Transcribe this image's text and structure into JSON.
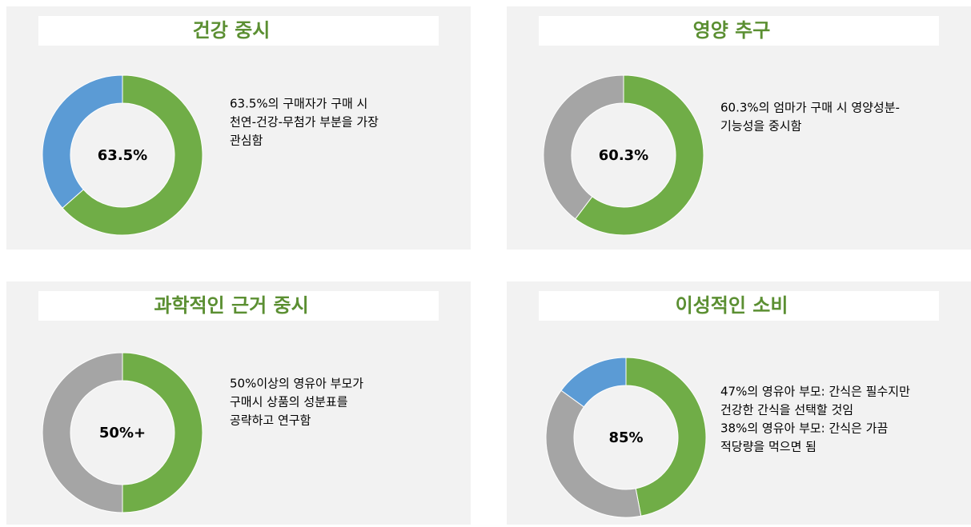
{
  "chart_data": [
    {
      "type": "donut",
      "title": "건강 중시",
      "center_label": "63.5%",
      "annotation": [
        "63.5%의 구매자가 구매 시",
        "천연-건강-무첨가 부분을 가장",
        "관심함"
      ],
      "values": [
        63.5,
        36.5
      ],
      "colors": [
        "#70ad47",
        "#5b9bd5"
      ]
    },
    {
      "type": "donut",
      "title": "영양 추구",
      "center_label": "60.3%",
      "annotation": [
        "60.3%의 엄마가 구매 시 영양성분-",
        "기능성을 중시함"
      ],
      "values": [
        60.3,
        39.7
      ],
      "colors": [
        "#70ad47",
        "#a5a5a5"
      ]
    },
    {
      "type": "donut",
      "title": "과학적인 근거 중시",
      "center_label": "50%+",
      "annotation": [
        "50%이상의 영유아 부모가",
        "구매시 상품의 성분표를",
        "공략하고 연구함"
      ],
      "values": [
        50,
        50
      ],
      "colors": [
        "#70ad47",
        "#a5a5a5"
      ]
    },
    {
      "type": "donut",
      "title": "이성적인 소비",
      "center_label": "85%",
      "annotation": [
        "47%의 영유아 부모: 간식은 필수지만",
        "건강한 간식을 선택할 것임",
        "38%의 영유아 부모: 간식은 가끔",
        "적당량을 먹으면 됨"
      ],
      "values": [
        47,
        38,
        15
      ],
      "colors": [
        "#70ad47",
        "#a5a5a5",
        "#5b9bd5"
      ]
    }
  ]
}
